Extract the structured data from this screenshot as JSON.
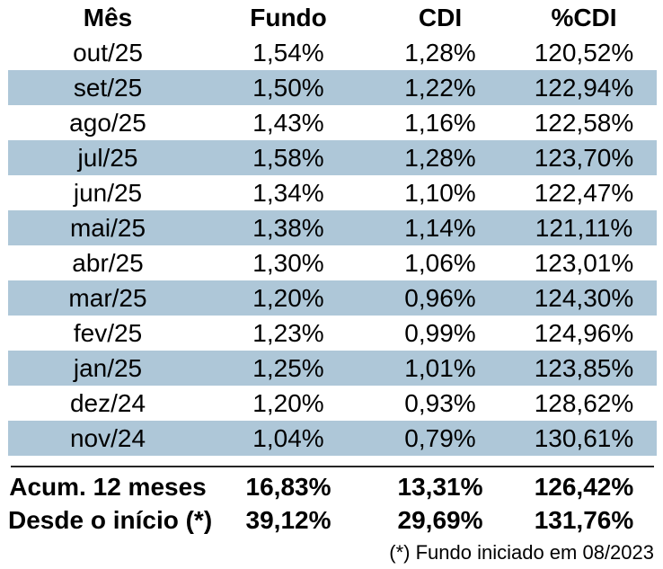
{
  "chart_data": {
    "type": "table",
    "columns": [
      "Mês",
      "Fundo",
      "CDI",
      "%CDI"
    ],
    "rows": [
      [
        "out/25",
        "1,54%",
        "1,28%",
        "120,52%"
      ],
      [
        "set/25",
        "1,50%",
        "1,22%",
        "122,94%"
      ],
      [
        "ago/25",
        "1,43%",
        "1,16%",
        "122,58%"
      ],
      [
        "jul/25",
        "1,58%",
        "1,28%",
        "123,70%"
      ],
      [
        "jun/25",
        "1,34%",
        "1,10%",
        "122,47%"
      ],
      [
        "mai/25",
        "1,38%",
        "1,14%",
        "121,11%"
      ],
      [
        "abr/25",
        "1,30%",
        "1,06%",
        "123,01%"
      ],
      [
        "mar/25",
        "1,20%",
        "0,96%",
        "124,30%"
      ],
      [
        "fev/25",
        "1,23%",
        "0,99%",
        "124,96%"
      ],
      [
        "jan/25",
        "1,25%",
        "1,01%",
        "123,85%"
      ],
      [
        "dez/24",
        "1,20%",
        "0,93%",
        "128,62%"
      ],
      [
        "nov/24",
        "1,04%",
        "0,79%",
        "130,61%"
      ]
    ],
    "summary_rows": [
      [
        "Acum. 12 meses",
        "16,83%",
        "13,31%",
        "126,42%"
      ],
      [
        "Desde o início (*)",
        "39,12%",
        "29,69%",
        "131,76%"
      ]
    ],
    "footnote": "(*) Fundo iniciado em 08/2023",
    "layout": {
      "stripe_pattern": "alternating, second data row shaded",
      "alignment": "center"
    }
  },
  "colors": {
    "stripe": "#aec7d8",
    "text": "#000000",
    "divider": "#262626",
    "background": "#ffffff"
  }
}
